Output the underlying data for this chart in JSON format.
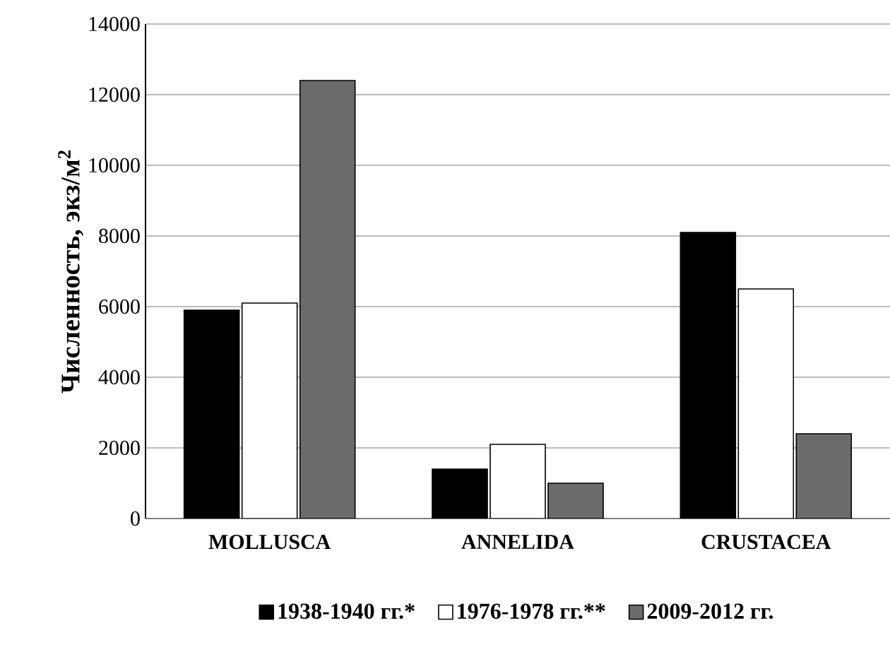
{
  "chart_data": {
    "type": "bar",
    "ylabel": "Численность, экз/м$^{2}$",
    "categories": [
      "MOLLUSCA",
      "ANNELIDA",
      "CRUSTACEA"
    ],
    "series": [
      {
        "name": "1938-1940 гг.*",
        "color": "#000000",
        "values": [
          5900,
          1400,
          8100
        ]
      },
      {
        "name": "1976-1978 гг.**",
        "color": "#ffffff",
        "values": [
          6100,
          2100,
          6500
        ]
      },
      {
        "name": "2009-2012 гг.",
        "color": "#6b6b6b",
        "values": [
          12400,
          1000,
          2400
        ]
      }
    ],
    "ylim": [
      0,
      14000
    ],
    "yticks": [
      0,
      2000,
      4000,
      6000,
      8000,
      10000,
      12000,
      14000
    ],
    "grid": "y",
    "legend": "bottom"
  }
}
